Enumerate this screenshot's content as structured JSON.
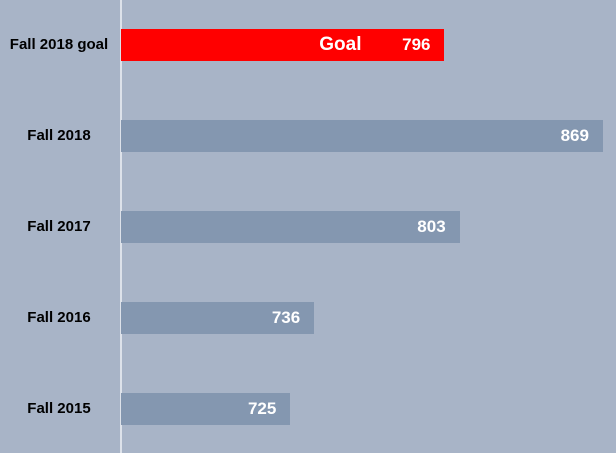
{
  "chart_data": {
    "type": "bar",
    "orientation": "horizontal",
    "categories": [
      "Fall 2018 goal",
      "Fall 2018",
      "Fall 2017",
      "Fall 2016",
      "Fall 2015"
    ],
    "values": [
      796,
      869,
      803,
      736,
      725
    ],
    "colors": [
      "#ff0000",
      "#8497b0",
      "#8497b0",
      "#8497b0",
      "#8497b0"
    ],
    "annotation": "Goal",
    "xlim": [
      647,
      875
    ]
  }
}
